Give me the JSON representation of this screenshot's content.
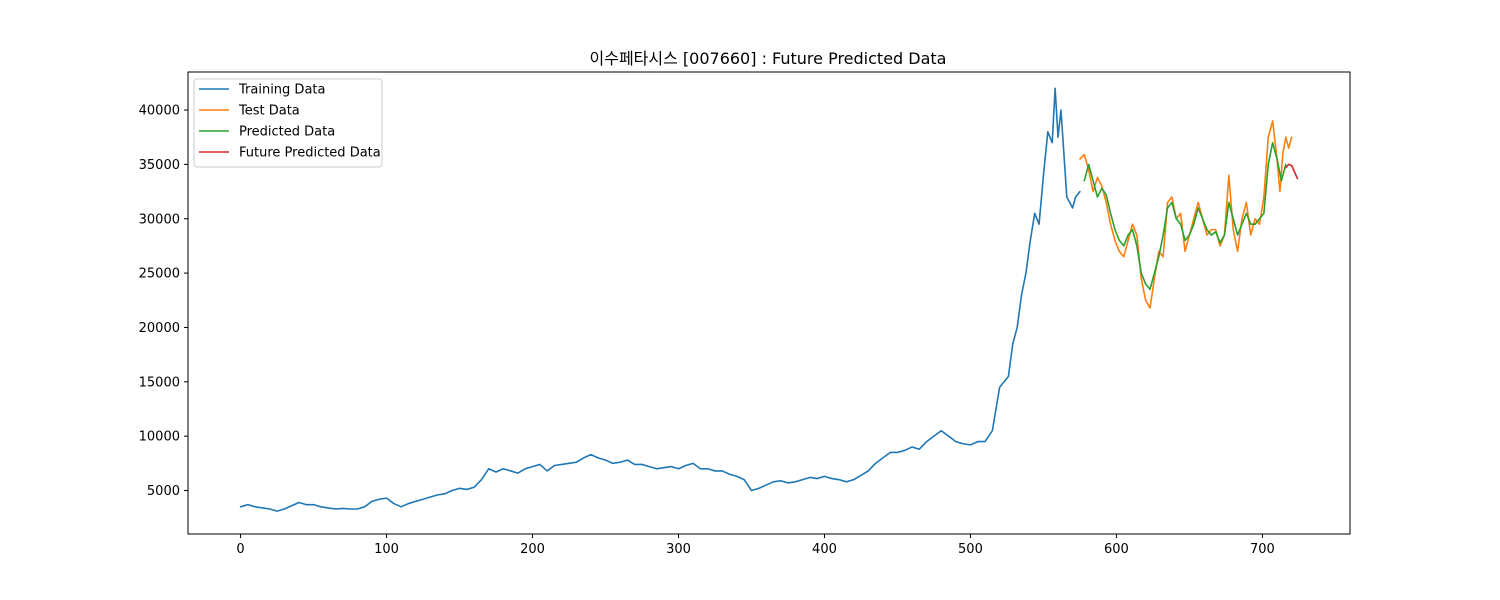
{
  "chart_data": {
    "type": "line",
    "title": "이수페타시스 [007660] : Future Predicted Data",
    "xlabel": "",
    "ylabel": "",
    "xlim": [
      -36,
      760
    ],
    "ylim": [
      1000,
      43500
    ],
    "xticks": [
      0,
      100,
      200,
      300,
      400,
      500,
      600,
      700
    ],
    "yticks": [
      5000,
      10000,
      15000,
      20000,
      25000,
      30000,
      35000,
      40000
    ],
    "xtick_labels": [
      "0",
      "100",
      "200",
      "300",
      "400",
      "500",
      "600",
      "700"
    ],
    "ytick_labels": [
      "5000",
      "10000",
      "15000",
      "20000",
      "25000",
      "30000",
      "35000",
      "40000"
    ],
    "grid": false,
    "legend_position": "upper-left",
    "series": [
      {
        "name": "Training Data",
        "color": "#1f77b4",
        "x": [
          0,
          5,
          10,
          15,
          20,
          25,
          30,
          35,
          40,
          45,
          50,
          55,
          60,
          65,
          70,
          75,
          80,
          85,
          90,
          95,
          100,
          105,
          110,
          115,
          120,
          125,
          130,
          135,
          140,
          145,
          150,
          155,
          160,
          165,
          170,
          175,
          180,
          185,
          190,
          195,
          200,
          205,
          210,
          215,
          220,
          225,
          230,
          235,
          240,
          245,
          250,
          255,
          260,
          265,
          270,
          275,
          280,
          285,
          290,
          295,
          300,
          305,
          310,
          315,
          320,
          325,
          330,
          335,
          340,
          345,
          350,
          355,
          360,
          365,
          370,
          375,
          380,
          385,
          390,
          395,
          400,
          405,
          410,
          415,
          420,
          425,
          430,
          435,
          440,
          445,
          450,
          455,
          460,
          465,
          470,
          475,
          480,
          485,
          490,
          495,
          500,
          505,
          510,
          515,
          520,
          523,
          526,
          529,
          532,
          535,
          538,
          541,
          544,
          547,
          550,
          553,
          556,
          558,
          560,
          562,
          564,
          566,
          568,
          570,
          572,
          575
        ],
        "values": [
          3500,
          3700,
          3500,
          3400,
          3300,
          3100,
          3300,
          3600,
          3900,
          3700,
          3700,
          3500,
          3400,
          3300,
          3350,
          3300,
          3300,
          3500,
          4000,
          4200,
          4300,
          3800,
          3500,
          3800,
          4000,
          4200,
          4400,
          4600,
          4700,
          5000,
          5200,
          5100,
          5300,
          6000,
          7000,
          6700,
          7000,
          6800,
          6600,
          7000,
          7200,
          7400,
          6800,
          7300,
          7400,
          7500,
          7600,
          8000,
          8300,
          8000,
          7800,
          7500,
          7600,
          7800,
          7400,
          7400,
          7200,
          7000,
          7100,
          7200,
          7000,
          7300,
          7500,
          7000,
          7000,
          6800,
          6800,
          6500,
          6300,
          6000,
          5000,
          5200,
          5500,
          5800,
          5900,
          5700,
          5800,
          6000,
          6200,
          6100,
          6300,
          6100,
          6000,
          5800,
          6000,
          6400,
          6800,
          7500,
          8000,
          8500,
          8500,
          8700,
          9000,
          8800,
          9500,
          10000,
          10500,
          10000,
          9500,
          9300,
          9200,
          9500,
          9500,
          10500,
          14500,
          15000,
          15500,
          18500,
          20000,
          23000,
          25000,
          28000,
          30500,
          29500,
          34000,
          38000,
          37000,
          42000,
          37500,
          40000,
          36000,
          32000,
          31500,
          31000,
          32000,
          32500
        ]
      },
      {
        "name": "Test Data",
        "color": "#ff7f0e",
        "x": [
          575,
          578,
          581,
          584,
          587,
          590,
          593,
          596,
          599,
          602,
          605,
          608,
          611,
          614,
          617,
          620,
          623,
          626,
          629,
          632,
          635,
          638,
          641,
          644,
          647,
          650,
          653,
          656,
          659,
          662,
          665,
          668,
          671,
          674,
          677,
          680,
          683,
          686,
          689,
          692,
          695,
          698,
          701,
          704,
          707,
          710,
          712,
          714,
          716,
          718,
          720
        ],
        "values": [
          35500,
          35900,
          34500,
          32500,
          33800,
          33000,
          31500,
          29500,
          28000,
          27000,
          26500,
          28000,
          29500,
          28500,
          24500,
          22500,
          21800,
          24500,
          27000,
          26500,
          31500,
          32000,
          30000,
          30500,
          27000,
          28500,
          30000,
          31500,
          30000,
          28500,
          29000,
          29000,
          27500,
          28500,
          34000,
          29000,
          27000,
          30000,
          31500,
          28500,
          30000,
          29500,
          32000,
          37500,
          39000,
          35500,
          32500,
          36000,
          37500,
          36500,
          37500
        ]
      },
      {
        "name": "Predicted Data",
        "color": "#2ca02c",
        "x": [
          578,
          581,
          584,
          587,
          590,
          593,
          596,
          599,
          602,
          605,
          608,
          611,
          614,
          617,
          620,
          623,
          626,
          629,
          632,
          635,
          638,
          641,
          644,
          647,
          650,
          653,
          656,
          659,
          662,
          665,
          668,
          671,
          674,
          677,
          680,
          683,
          686,
          689,
          692,
          695,
          698,
          701,
          704,
          707,
          710,
          713,
          716
        ],
        "values": [
          33500,
          35000,
          33500,
          32000,
          32800,
          32200,
          30500,
          29000,
          28000,
          27500,
          28500,
          29000,
          27500,
          25000,
          24000,
          23500,
          25000,
          26500,
          28500,
          31000,
          31500,
          30000,
          29500,
          28000,
          28500,
          29500,
          31000,
          30000,
          29000,
          28500,
          28800,
          27800,
          28500,
          31500,
          30000,
          28500,
          29500,
          30500,
          29500,
          29500,
          30000,
          30500,
          35000,
          37000,
          35500,
          33500,
          35000
        ]
      },
      {
        "name": "Future Predicted Data",
        "color": "#d62728",
        "x": [
          716,
          718,
          720,
          722,
          724
        ],
        "values": [
          34700,
          35000,
          34900,
          34300,
          33700
        ]
      }
    ]
  }
}
